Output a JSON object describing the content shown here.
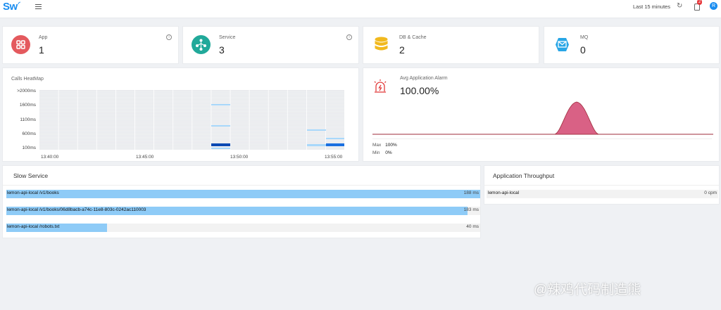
{
  "header": {
    "logo": "Sw",
    "time_range": "Last 15 minutes",
    "alarm_count": "2",
    "user_initial": "R"
  },
  "stats": [
    {
      "label": "App",
      "value": "1"
    },
    {
      "label": "Service",
      "value": "3"
    },
    {
      "label": "DB & Cache",
      "value": "2"
    },
    {
      "label": "MQ",
      "value": "0"
    }
  ],
  "heatmap": {
    "title": "Calls HeatMap",
    "y_labels": [
      ">2000ms",
      "1600ms",
      "1100ms",
      "600ms",
      "100ms"
    ],
    "x_labels": [
      "13:40:00",
      "13:45:00",
      "13:50:00",
      "13:55:00"
    ]
  },
  "alarm": {
    "title": "Avg Application Alarm",
    "value": "100.00%",
    "max_label": "Max",
    "max_value": "100%",
    "min_label": "Min",
    "min_value": "0%"
  },
  "slow_service": {
    "title": "Slow Service",
    "items": [
      {
        "name": "lemon-api-local /v1/books",
        "value": "188 ms",
        "fraction": 1.0
      },
      {
        "name": "lemon-api-local /v1/books/06d8bacb-a74c-11e8-803c-0242ac110003",
        "value": "183 ms",
        "fraction": 0.973
      },
      {
        "name": "lemon-api-local /robots.txt",
        "value": "40 ms",
        "fraction": 0.213
      }
    ]
  },
  "throughput": {
    "title": "Application Throughput",
    "items": [
      {
        "name": "lemon-api-local",
        "value": "0 cpm"
      }
    ]
  },
  "watermark": "@辣鸡代码制造熊",
  "colors": {
    "accent": "#1a8df0",
    "app_icon": "#e45a5e",
    "service_icon": "#21a99a",
    "db_icon": "#f1b91e",
    "mq_icon": "#29a6e6",
    "slow_bar": "#8ecbf7",
    "alarm_fill": "#d96185"
  }
}
